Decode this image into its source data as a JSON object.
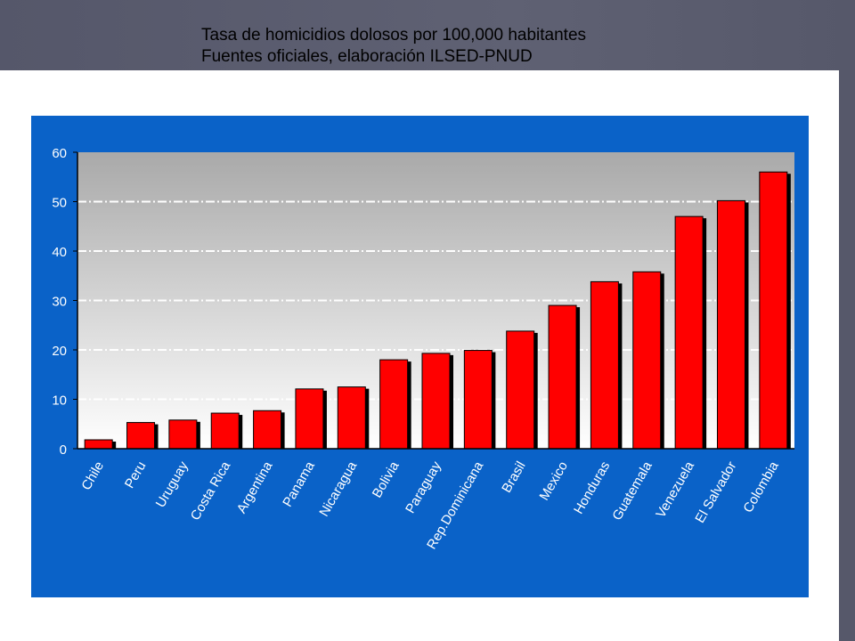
{
  "slide": {
    "title_line1": "Tasa de homicidios dolosos por 100,000 habitantes",
    "title_line2": "Fuentes oficiales, elaboración ILSED-PNUD"
  },
  "colors": {
    "chart_frame": "#0a62c8",
    "plot_bg_top": "#a9a9a9",
    "plot_bg_bottom": "#ffffff",
    "bar": "#ff0000",
    "bar_shadow": "#000000",
    "gridline": "#ffffff",
    "text": "#ffffff"
  },
  "chart_data": {
    "type": "bar",
    "title": "",
    "xlabel": "",
    "ylabel": "",
    "ylim": [
      0,
      60
    ],
    "yticks": [
      0,
      10,
      20,
      30,
      40,
      50,
      60
    ],
    "grid": true,
    "categories": [
      "Chile",
      "Peru",
      "Uruguay",
      "Costa Rica",
      "Argentina",
      "Panama",
      "Nicaragua",
      "Bolivia",
      "Paraguay",
      "Rep.Dominicana",
      "Brasil",
      "Mexico",
      "Honduras",
      "Guatemala",
      "Venezuela",
      "El Salvador",
      "Colombia"
    ],
    "values": [
      1.8,
      5.3,
      5.8,
      7.2,
      7.7,
      12.1,
      12.5,
      18,
      19.3,
      19.9,
      23.8,
      29,
      33.8,
      35.8,
      47,
      50.2,
      56
    ]
  }
}
